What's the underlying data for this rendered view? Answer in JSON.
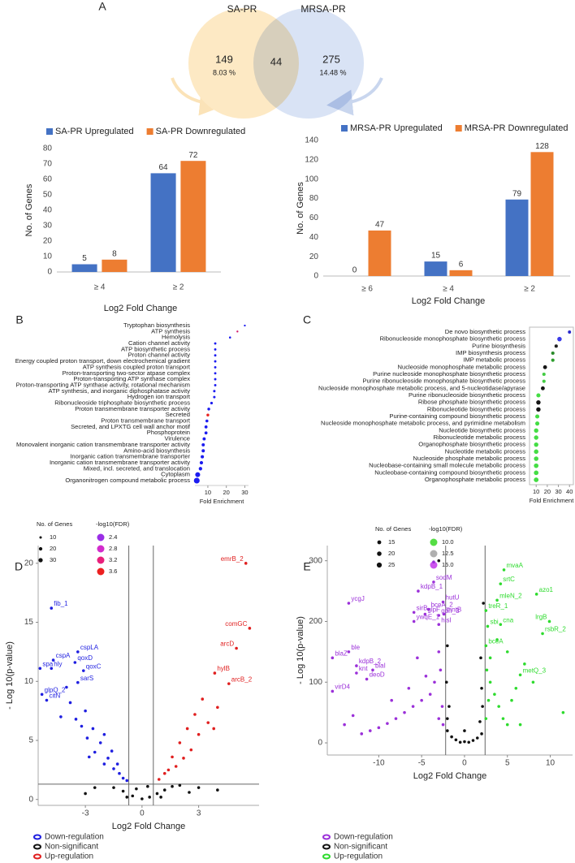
{
  "chart_data": [
    {
      "type": "venn",
      "panel": "A",
      "sets": [
        {
          "name": "SA-PR",
          "color": "#fde9c4"
        },
        {
          "name": "MRSA-PR",
          "color": "#d9e3f5"
        }
      ],
      "values": [
        149,
        44,
        275
      ],
      "percents": [
        8.03,
        14.48
      ],
      "percent_labels": [
        "8.03 %",
        "14.48 %"
      ]
    },
    {
      "type": "bar",
      "categories": [
        "≥ 4",
        "≥ 2"
      ],
      "series": [
        {
          "name": "SA-PR Upregulated",
          "color": "#4472c4",
          "values": [
            5,
            64
          ]
        },
        {
          "name": "SA-PR Downregulated",
          "color": "#ed7d31",
          "values": [
            8,
            72
          ]
        }
      ],
      "xlabel": "Log2 Fold Change",
      "ylabel": "No. of Genes",
      "ylim": [
        0,
        80
      ],
      "yticks": [
        0,
        10,
        20,
        30,
        40,
        50,
        60,
        70,
        80
      ],
      "grid": false
    },
    {
      "type": "bar",
      "categories": [
        "≥ 6",
        "≥ 4",
        "≥ 2"
      ],
      "series": [
        {
          "name": "MRSA-PR Upregulated",
          "color": "#4472c4",
          "values": [
            0,
            15,
            79
          ]
        },
        {
          "name": "MRSA-PR Downregulated",
          "color": "#ed7d31",
          "values": [
            47,
            6,
            128
          ]
        }
      ],
      "xlabel": "Log2 Fold Change",
      "ylabel": "No. of Genes",
      "ylim": [
        0,
        140
      ],
      "yticks": [
        0,
        20,
        40,
        60,
        80,
        100,
        120,
        140
      ],
      "grid": false
    },
    {
      "type": "dot",
      "panel": "B",
      "frame": false,
      "categories": [
        "Tryptophan biosynthesis",
        "ATP synthesis",
        "Hemolysis",
        "Cation channel activity",
        "ATP biosynthetic process",
        "Proton channel activity",
        "Energy coupled proton transport, down electrochemical gradient",
        "ATP synthesis coupled proton transport",
        "Proton-transporting two-sector atpase complex",
        "Proton-transporting ATP synthase complex",
        "Proton-transporting ATP synthase activity, rotational mechanism",
        "ATP synthesis, and inorganic diphosphatase activity",
        "Hydrogen ion transport",
        "Ribonucleoside triphosphate biosynthetic process",
        "Proton transmembrane transporter activity",
        "Secreted",
        "Proton transmembrane transport",
        "Secreted, and LPXTG cell wall anchor motif",
        "Phosphoprotein",
        "Virulence",
        "Monovalent inorganic cation transmembrane transporter activity",
        "Amino-acid biosynthesis",
        "Inorganic cation transmembrane transporter",
        "Inorganic cation transmembrane transporter activity",
        "Mixed, incl. secreted, and translocation",
        "Cytoplasm",
        "Organonitrogen compound metabolic process"
      ],
      "values": [
        30,
        26,
        22,
        14,
        14,
        14,
        14,
        14,
        14,
        14,
        14,
        13.5,
        13.5,
        12,
        10.5,
        10,
        9.5,
        9,
        9,
        8,
        7.5,
        7.5,
        7,
        6.5,
        6,
        4.5,
        4
      ],
      "sizes": [
        6,
        6,
        7,
        9,
        9,
        9,
        9,
        9,
        9,
        9,
        9,
        10,
        10,
        11,
        13,
        13,
        14,
        15,
        15,
        16,
        17,
        17,
        18,
        19,
        20,
        40,
        55
      ],
      "colors": [
        "#1c1cf0",
        "#d41a6a",
        "#1c1cf0",
        "#1c1cf0",
        "#1c1cf0",
        "#1c1cf0",
        "#1c1cf0",
        "#1c1cf0",
        "#1c1cf0",
        "#1c1cf0",
        "#1c1cf0",
        "#1c1cf0",
        "#1c1cf0",
        "#1c1cf0",
        "#1c1cf0",
        "#e8201f",
        "#1c1cf0",
        "#1c1cf0",
        "#1c1cf0",
        "#1c1cf0",
        "#1c1cf0",
        "#1c1cf0",
        "#1c1cf0",
        "#1c1cf0",
        "#1c1cf0",
        "#1c1cf0",
        "#1c1cf0"
      ],
      "xlabel": "Fold Enrichment",
      "xlim": [
        3,
        32
      ],
      "xticks": [
        10,
        20,
        30
      ],
      "size_legend": {
        "title": "No. of Genes",
        "values": [
          10,
          20,
          30
        ]
      },
      "color_legend": {
        "title": "-log10(FDR)",
        "values": [
          2.4,
          2.8,
          3.2,
          3.6
        ],
        "colors": [
          "#9a2ee6",
          "#d22ccc",
          "#e8207c",
          "#ec2020"
        ]
      }
    },
    {
      "type": "dot",
      "panel": "C",
      "frame": true,
      "categories": [
        "De novo biosynthetic process",
        "Ribonucleoside monophosphate biosynthetic process",
        "Purine biosynthesis",
        "IMP biosynthesis process",
        "IMP metabolic process",
        "Nucleoside monophosphate metabolic process",
        "Purine nucleoside monophosphate biosynthetic process",
        "Purine ribonucleoside monophosphate biosynthetic process",
        "Nucleoside monophosphate metabolic process, and 5-nucleotidase/apyrase",
        "Purine ribonucleoside biosynthetic process",
        "Ribose phosphate biosynthetic process",
        "Ribonucleotide biosynthetic process",
        "Purine-containing compound biosynthetic process",
        "Nucleoside monophosphate metabolic process, and pyrimidine metabolism",
        "Nucleotide biosynthetic process",
        "Ribonucleotide metabolic process",
        "Organophosphate biosynthetic process",
        "Nucleotide metabolic process",
        "Nucleoside phosphate metabolic process",
        "Nucleobase-containing small molecule metabolic process",
        "Nucleobase-containing compound biosynthetic process",
        "Organophosphate metabolic process"
      ],
      "values": [
        40,
        31,
        28,
        25,
        25,
        18,
        17,
        17,
        16,
        12,
        12,
        12,
        11,
        11,
        10,
        10,
        10,
        10,
        10,
        10,
        10,
        10
      ],
      "sizes": [
        10,
        20,
        11,
        11,
        11,
        15,
        11,
        11,
        15,
        17,
        19,
        19,
        17,
        17,
        19,
        19,
        19,
        20,
        20,
        21,
        21,
        22
      ],
      "colors": [
        "#2a2acc",
        "#3a3ae8",
        "#202020",
        "#2a8a2a",
        "#2e9e2e",
        "#151515",
        "#44cc44",
        "#44cc44",
        "#151515",
        "#44dd44",
        "#151515",
        "#151515",
        "#44dd44",
        "#44dd44",
        "#44dd44",
        "#44dd44",
        "#44dd44",
        "#44dd44",
        "#44dd44",
        "#44dd44",
        "#44dd44",
        "#44dd44"
      ],
      "xlabel": "Fold Enrichment",
      "xlim": [
        4,
        43.5
      ],
      "xticks": [
        10,
        20,
        30,
        40
      ],
      "size_legend": {
        "title": "No. of Genes",
        "values": [
          15,
          20,
          25
        ]
      },
      "color_legend": {
        "title": "-log10(FDR)",
        "values": [
          {
            "value": 10,
            "label": "10.0"
          },
          {
            "value": 12.5,
            "label": "12.5"
          },
          {
            "value": 15,
            "label": "15.0"
          }
        ],
        "colors": [
          "#55dd44",
          "#b0b0b0",
          "#cc55ee"
        ]
      }
    },
    {
      "type": "volcano",
      "panel": "D",
      "xlabel": "Log2 Fold Change",
      "ylabel": "- Log 10(p-value)",
      "xlim": [
        -5.5,
        6.2
      ],
      "ylim": [
        -0.5,
        21.5
      ],
      "xticks": [
        -3,
        0,
        3
      ],
      "yticks": [
        0,
        5,
        10,
        15,
        20
      ],
      "thresholds": {
        "x": [
          -0.7,
          0.6
        ],
        "y": 1.3
      },
      "series": [
        {
          "name": "Down-regulation",
          "color": "#1f1fe0",
          "x": [
            -4.8,
            -3.4,
            -4.7,
            -3.55,
            -5.4,
            -4.8,
            -3.1,
            -3.4,
            -5.3,
            -5.05,
            -4.0,
            -3.8,
            -3.0,
            -3.5,
            -2.6,
            -2.9,
            -2.2,
            -2.5,
            -1.8,
            -2.0,
            -1.5,
            -1.2,
            -1.0,
            -4.3,
            -3.2,
            -2.0,
            -1.6,
            -2.8,
            -0.8,
            -1.3
          ],
          "y": [
            16.2,
            12.5,
            11.8,
            11.6,
            11.1,
            11.1,
            10.9,
            9.9,
            8.9,
            8.4,
            9.5,
            8.2,
            7.5,
            6.8,
            6.0,
            5.2,
            4.8,
            4.0,
            3.5,
            3.0,
            2.6,
            2.2,
            1.8,
            7.0,
            6.2,
            5.5,
            4.1,
            3.6,
            1.6,
            3.0
          ],
          "labels": [
            "fib_1",
            "cspLA",
            "cspA",
            "qoxD",
            "spa",
            "hly",
            "qoxC",
            "sarS",
            "glpQ_2",
            "citN",
            null,
            null,
            null,
            null,
            null,
            null,
            null,
            null,
            null,
            null,
            null,
            null,
            null,
            null,
            null,
            null,
            null,
            null,
            null,
            null
          ]
        },
        {
          "name": "Non-significant",
          "color": "#111111",
          "x": [
            -1.5,
            -1.0,
            -0.5,
            0,
            0.4,
            0.8,
            1.2,
            1.6,
            2.0,
            -2.5,
            -0.3,
            0.3,
            2.5,
            3.0,
            -3.0,
            4.0,
            1.0,
            -0.8
          ],
          "y": [
            1.0,
            0.7,
            0.3,
            0.05,
            0.2,
            0.5,
            0.8,
            1.1,
            1.2,
            1.0,
            0.9,
            1.1,
            0.6,
            1.0,
            0.5,
            0.8,
            0.2,
            0.2
          ],
          "labels": [
            null,
            null,
            null,
            null,
            null,
            null,
            null,
            null,
            null,
            null,
            null,
            null,
            null,
            null,
            null,
            null,
            null,
            null
          ]
        },
        {
          "name": "Up-regulation",
          "color": "#e01f1f",
          "x": [
            5.5,
            5.7,
            5.0,
            3.85,
            4.6,
            3.2,
            2.8,
            3.5,
            2.4,
            2.0,
            2.6,
            1.6,
            1.8,
            1.2,
            0.9,
            3.0,
            2.2,
            1.4,
            4.0,
            3.8
          ],
          "y": [
            20,
            14.5,
            12.8,
            10.7,
            9.8,
            8.5,
            7.2,
            6.5,
            6.0,
            4.8,
            4.2,
            3.6,
            2.8,
            2.2,
            1.7,
            5.5,
            3.5,
            2.5,
            7.8,
            6.0
          ],
          "labels": [
            "emrB_2",
            "comGC",
            "arcD",
            "hylB",
            "arcB_2",
            null,
            null,
            null,
            null,
            null,
            null,
            null,
            null,
            null,
            null,
            null,
            null,
            null,
            null,
            null
          ]
        }
      ]
    },
    {
      "type": "volcano",
      "panel": "E",
      "xlabel": "Log2 Fold Change",
      "ylabel": "- Log 10(p-value)",
      "xlim": [
        -16,
        12.6
      ],
      "ylim": [
        -20,
        325
      ],
      "xticks": [
        -10,
        -5,
        0,
        5,
        10
      ],
      "yticks": [
        0,
        100,
        200,
        300
      ],
      "thresholds": {
        "x": [
          -2.2,
          2.4
        ]
      },
      "series": [
        {
          "name": "Down-regulation",
          "color": "#9b30d9",
          "x": [
            -3.6,
            -5.4,
            -2.5,
            -13.5,
            -4.2,
            -5.9,
            -4.6,
            -3.0,
            -2.4,
            -5.9,
            -3.0,
            -13.5,
            -15.4,
            -12.6,
            -10.7,
            -12.6,
            -11.4,
            -15.4,
            -3.6,
            -3,
            -2.8,
            -3.5,
            -4,
            -5,
            -6,
            -7,
            -8,
            -9,
            -10,
            -11,
            -12,
            -2.6,
            -2.5,
            -3,
            -4.5,
            -6.5,
            -8.5,
            -13,
            -14,
            -5.5
          ],
          "y": [
            265,
            250,
            232,
            230,
            220,
            215,
            212,
            210,
            212,
            200,
            195,
            150,
            140,
            127,
            120,
            115,
            105,
            85,
            298,
            150,
            120,
            100,
            80,
            70,
            60,
            50,
            40,
            32,
            25,
            20,
            15,
            60,
            30,
            40,
            110,
            90,
            70,
            45,
            30,
            140
          ],
          "labels": [
            "sodM",
            "kdpB_1",
            "hutU",
            "ycgJ",
            "bceA_2",
            "sirB",
            "glpF",
            "gph_3",
            "mntB",
            "ywqE_1",
            "hisI",
            "ble",
            "blaZ",
            "kdpB_2",
            "blaI",
            "knt",
            "deoD",
            "virD4",
            null,
            null,
            null,
            null,
            null,
            null,
            null,
            null,
            null,
            null,
            null,
            null,
            null,
            null,
            null,
            null,
            null,
            null,
            null,
            null,
            null,
            null
          ]
        },
        {
          "name": "Non-significant",
          "color": "#111111",
          "x": [
            -2,
            -1.5,
            -1,
            0,
            1,
            1.5,
            2,
            -2,
            1.8,
            -0.5,
            0.5,
            -1.8,
            2.1,
            0,
            -2.1,
            2,
            -2,
            1.9,
            -3,
            2.2
          ],
          "y": [
            20,
            10,
            5,
            2,
            4,
            8,
            15,
            40,
            35,
            1,
            1,
            60,
            60,
            20,
            100,
            90,
            160,
            140,
            300,
            230
          ],
          "labels": [
            null,
            null,
            null,
            null,
            null,
            null,
            null,
            null,
            null,
            null,
            null,
            null,
            null,
            null,
            null,
            null,
            null,
            null,
            null,
            null
          ]
        },
        {
          "name": "Up-regulation",
          "color": "#2edb2e",
          "x": [
            4.6,
            4.2,
            8.4,
            3.8,
            2.5,
            9.9,
            2.7,
            4.2,
            9.1,
            2.5,
            6.5,
            2.6,
            3,
            3.5,
            4,
            4.5,
            5,
            3,
            2.8,
            2.5,
            5.5,
            6,
            7,
            5,
            8,
            11.5,
            6.5,
            3.8
          ],
          "y": [
            285,
            262,
            245,
            235,
            218,
            200,
            192,
            195,
            180,
            160,
            112,
            120,
            100,
            80,
            60,
            40,
            30,
            140,
            70,
            40,
            70,
            90,
            130,
            150,
            100,
            50,
            30,
            170
          ],
          "labels": [
            "mvaA",
            "srtC",
            "azo1",
            "mleN_2",
            "treR_1",
            "lrgB",
            "sbi",
            "cna",
            "rsbR_2",
            "bceA",
            "metQ_3",
            null,
            null,
            null,
            null,
            null,
            null,
            null,
            null,
            null,
            null,
            null,
            null,
            null,
            null,
            null,
            null,
            null
          ]
        }
      ]
    }
  ]
}
